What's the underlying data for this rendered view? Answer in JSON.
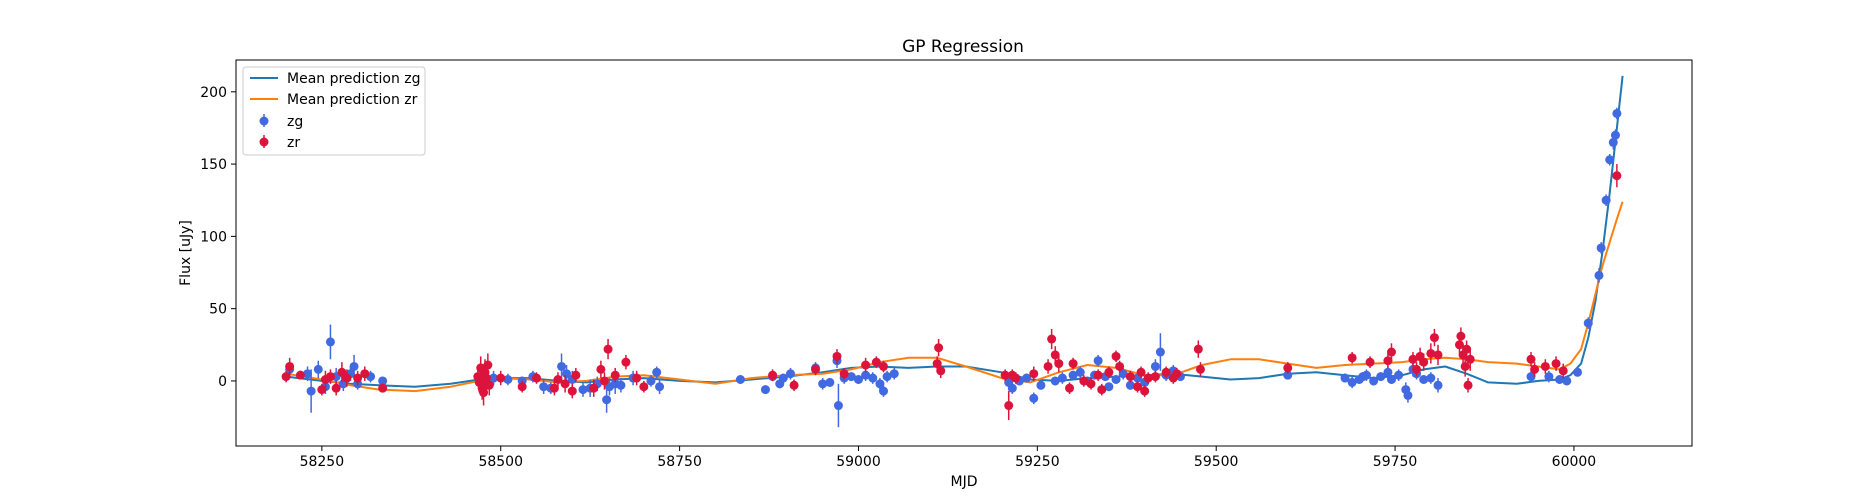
{
  "chart_data": {
    "type": "scatter",
    "title": "GP Regression",
    "xlabel": "MJD",
    "ylabel": "Flux [uJy]",
    "xlim": [
      58130,
      60165
    ],
    "ylim": [
      -45,
      222
    ],
    "xticks": [
      58250,
      58500,
      58750,
      59000,
      59250,
      59500,
      59750,
      60000
    ],
    "yticks": [
      0,
      50,
      100,
      150,
      200
    ],
    "legend_position": "top-left",
    "grid": false,
    "colors": {
      "mean_zg": "#1f77b4",
      "mean_zr": "#ff7f0e",
      "zg": "#4169e1",
      "zr": "#dc143c"
    },
    "lines": [
      {
        "name": "Mean prediction zg",
        "x": [
          58200,
          58250,
          58290,
          58330,
          58380,
          58430,
          58470,
          58500,
          58540,
          58580,
          58620,
          58660,
          58700,
          58750,
          58800,
          58850,
          58900,
          58950,
          58990,
          59030,
          59070,
          59110,
          59150,
          59200,
          59240,
          59280,
          59320,
          59360,
          59400,
          59440,
          59480,
          59520,
          59560,
          59600,
          59640,
          59680,
          59720,
          59760,
          59790,
          59820,
          59850,
          59880,
          59920,
          59950,
          59980,
          59995,
          60010,
          60020,
          60030,
          60040,
          60050,
          60060,
          60068
        ],
        "y": [
          3,
          0,
          -2,
          -3,
          -4,
          -2,
          1,
          2,
          2,
          0,
          -1,
          1,
          2,
          0,
          -1,
          1,
          3,
          6,
          9,
          10,
          9,
          10,
          10,
          6,
          1,
          0,
          2,
          3,
          4,
          5,
          3,
          1,
          2,
          5,
          6,
          4,
          2,
          4,
          8,
          10,
          5,
          -1,
          -2,
          0,
          1,
          4,
          12,
          30,
          55,
          90,
          130,
          175,
          211
        ]
      },
      {
        "name": "Mean prediction zr",
        "x": [
          58200,
          58250,
          58290,
          58330,
          58380,
          58430,
          58470,
          58500,
          58540,
          58580,
          58620,
          58660,
          58700,
          58750,
          58800,
          58850,
          58900,
          58950,
          58990,
          59030,
          59070,
          59110,
          59150,
          59200,
          59240,
          59280,
          59320,
          59360,
          59400,
          59440,
          59480,
          59520,
          59560,
          59600,
          59640,
          59680,
          59720,
          59760,
          59790,
          59820,
          59850,
          59880,
          59920,
          59950,
          59980,
          59995,
          60010,
          60020,
          60030,
          60040,
          60050,
          60060,
          60068
        ],
        "y": [
          5,
          1,
          -3,
          -6,
          -7,
          -4,
          0,
          2,
          1,
          -1,
          0,
          3,
          4,
          1,
          -2,
          2,
          4,
          5,
          8,
          13,
          16,
          16,
          10,
          2,
          -1,
          6,
          11,
          9,
          4,
          4,
          11,
          15,
          15,
          12,
          9,
          11,
          12,
          13,
          15,
          16,
          15,
          13,
          12,
          10,
          8,
          12,
          22,
          40,
          60,
          80,
          96,
          112,
          124
        ]
      }
    ],
    "series": [
      {
        "name": "zg",
        "points": [
          [
            58205,
            8,
            4
          ],
          [
            58230,
            5,
            5
          ],
          [
            58235,
            -7,
            15
          ],
          [
            58245,
            8,
            6
          ],
          [
            58255,
            -4,
            5
          ],
          [
            58262,
            27,
            12
          ],
          [
            58270,
            3,
            6
          ],
          [
            58280,
            -2,
            5
          ],
          [
            58290,
            5,
            5
          ],
          [
            58295,
            10,
            8
          ],
          [
            58300,
            -2,
            4
          ],
          [
            58318,
            3,
            4
          ],
          [
            58335,
            0,
            3
          ],
          [
            58475,
            2,
            7
          ],
          [
            58480,
            -3,
            6
          ],
          [
            58490,
            2,
            5
          ],
          [
            58510,
            1,
            4
          ],
          [
            58530,
            0,
            3
          ],
          [
            58545,
            3,
            4
          ],
          [
            58560,
            -4,
            5
          ],
          [
            58570,
            -5,
            4
          ],
          [
            58585,
            10,
            9
          ],
          [
            58592,
            5,
            6
          ],
          [
            58600,
            1,
            6
          ],
          [
            58615,
            -6,
            5
          ],
          [
            58625,
            -5,
            6
          ],
          [
            58635,
            -2,
            5
          ],
          [
            58648,
            -13,
            9
          ],
          [
            58652,
            -4,
            6
          ],
          [
            58660,
            -2,
            7
          ],
          [
            58668,
            -3,
            5
          ],
          [
            58685,
            2,
            5
          ],
          [
            58710,
            0,
            4
          ],
          [
            58718,
            6,
            4
          ],
          [
            58722,
            -4,
            5
          ],
          [
            58835,
            1,
            3
          ],
          [
            58870,
            -6,
            3
          ],
          [
            58880,
            3,
            3
          ],
          [
            58890,
            -2,
            3
          ],
          [
            58895,
            2,
            3
          ],
          [
            58905,
            5,
            4
          ],
          [
            58940,
            9,
            4
          ],
          [
            58950,
            -2,
            4
          ],
          [
            58960,
            -1,
            3
          ],
          [
            58970,
            14,
            5
          ],
          [
            58972,
            -17,
            15
          ],
          [
            58980,
            2,
            4
          ],
          [
            58990,
            3,
            3
          ],
          [
            59000,
            1,
            3
          ],
          [
            59010,
            4,
            4
          ],
          [
            59020,
            2,
            4
          ],
          [
            59030,
            -2,
            4
          ],
          [
            59035,
            -7,
            4
          ],
          [
            59040,
            3,
            4
          ],
          [
            59050,
            5,
            4
          ],
          [
            59210,
            -1,
            3
          ],
          [
            59215,
            -5,
            4
          ],
          [
            59225,
            0,
            3
          ],
          [
            59235,
            2,
            3
          ],
          [
            59245,
            -12,
            4
          ],
          [
            59255,
            -3,
            3
          ],
          [
            59275,
            0,
            3
          ],
          [
            59285,
            2,
            4
          ],
          [
            59300,
            4,
            3
          ],
          [
            59310,
            6,
            4
          ],
          [
            59320,
            0,
            3
          ],
          [
            59330,
            4,
            3
          ],
          [
            59335,
            14,
            4
          ],
          [
            59345,
            3,
            3
          ],
          [
            59350,
            -4,
            3
          ],
          [
            59360,
            1,
            3
          ],
          [
            59370,
            5,
            4
          ],
          [
            59380,
            -3,
            3
          ],
          [
            59390,
            2,
            3
          ],
          [
            59400,
            -1,
            4
          ],
          [
            59415,
            10,
            5
          ],
          [
            59422,
            20,
            13
          ],
          [
            59430,
            4,
            4
          ],
          [
            59440,
            7,
            4
          ],
          [
            59450,
            3,
            3
          ],
          [
            59600,
            4,
            3
          ],
          [
            59680,
            2,
            3
          ],
          [
            59690,
            -1,
            4
          ],
          [
            59700,
            1,
            3
          ],
          [
            59705,
            3,
            3
          ],
          [
            59710,
            4,
            4
          ],
          [
            59720,
            0,
            3
          ],
          [
            59730,
            3,
            3
          ],
          [
            59740,
            6,
            4
          ],
          [
            59745,
            1,
            3
          ],
          [
            59755,
            4,
            4
          ],
          [
            59765,
            -6,
            5
          ],
          [
            59768,
            -10,
            5
          ],
          [
            59775,
            8,
            5
          ],
          [
            59780,
            5,
            4
          ],
          [
            59790,
            1,
            3
          ],
          [
            59800,
            2,
            4
          ],
          [
            59810,
            -3,
            5
          ],
          [
            59940,
            3,
            4
          ],
          [
            59965,
            3,
            4
          ],
          [
            59980,
            1,
            3
          ],
          [
            59990,
            0,
            3
          ],
          [
            60005,
            6,
            3
          ],
          [
            60020,
            40,
            4
          ],
          [
            60035,
            73,
            5
          ],
          [
            60038,
            92,
            4
          ],
          [
            60045,
            125,
            4
          ],
          [
            60050,
            153,
            4
          ],
          [
            60055,
            165,
            5
          ],
          [
            60058,
            170,
            4
          ],
          [
            60060,
            185,
            4
          ]
        ]
      },
      {
        "name": "zr",
        "points": [
          [
            58200,
            3,
            4
          ],
          [
            58205,
            10,
            6
          ],
          [
            58220,
            4,
            3
          ],
          [
            58250,
            -6,
            4
          ],
          [
            58255,
            1,
            6
          ],
          [
            58262,
            3,
            5
          ],
          [
            58270,
            -5,
            5
          ],
          [
            58278,
            6,
            7
          ],
          [
            58285,
            2,
            6
          ],
          [
            58300,
            2,
            5
          ],
          [
            58310,
            5,
            5
          ],
          [
            58335,
            -5,
            3
          ],
          [
            58468,
            3,
            6
          ],
          [
            58470,
            -1,
            7
          ],
          [
            58472,
            9,
            8
          ],
          [
            58474,
            -5,
            8
          ],
          [
            58476,
            -8,
            9
          ],
          [
            58478,
            6,
            9
          ],
          [
            58480,
            2,
            8
          ],
          [
            58482,
            11,
            8
          ],
          [
            58484,
            -3,
            7
          ],
          [
            58500,
            2,
            5
          ],
          [
            58530,
            -4,
            4
          ],
          [
            58550,
            2,
            4
          ],
          [
            58575,
            -5,
            5
          ],
          [
            58580,
            1,
            5
          ],
          [
            58590,
            -2,
            6
          ],
          [
            58600,
            -7,
            5
          ],
          [
            58605,
            4,
            5
          ],
          [
            58630,
            -5,
            6
          ],
          [
            58640,
            8,
            6
          ],
          [
            58645,
            0,
            6
          ],
          [
            58650,
            22,
            7
          ],
          [
            58660,
            4,
            5
          ],
          [
            58675,
            13,
            5
          ],
          [
            58690,
            2,
            5
          ],
          [
            58700,
            -4,
            4
          ],
          [
            58880,
            4,
            4
          ],
          [
            58910,
            -3,
            4
          ],
          [
            58940,
            8,
            4
          ],
          [
            58970,
            17,
            5
          ],
          [
            58980,
            5,
            4
          ],
          [
            59010,
            11,
            5
          ],
          [
            59025,
            13,
            4
          ],
          [
            59035,
            10,
            4
          ],
          [
            59110,
            12,
            5
          ],
          [
            59112,
            23,
            6
          ],
          [
            59115,
            7,
            5
          ],
          [
            59205,
            4,
            4
          ],
          [
            59210,
            -17,
            10
          ],
          [
            59215,
            4,
            4
          ],
          [
            59220,
            2,
            4
          ],
          [
            59245,
            5,
            5
          ],
          [
            59265,
            10,
            5
          ],
          [
            59270,
            29,
            7
          ],
          [
            59275,
            18,
            6
          ],
          [
            59280,
            12,
            6
          ],
          [
            59295,
            -5,
            4
          ],
          [
            59300,
            12,
            4
          ],
          [
            59315,
            0,
            4
          ],
          [
            59325,
            -2,
            4
          ],
          [
            59335,
            4,
            4
          ],
          [
            59340,
            -6,
            4
          ],
          [
            59350,
            6,
            4
          ],
          [
            59360,
            17,
            4
          ],
          [
            59365,
            10,
            4
          ],
          [
            59380,
            3,
            4
          ],
          [
            59390,
            -4,
            4
          ],
          [
            59395,
            6,
            4
          ],
          [
            59400,
            -7,
            4
          ],
          [
            59405,
            2,
            4
          ],
          [
            59415,
            3,
            4
          ],
          [
            59430,
            6,
            4
          ],
          [
            59440,
            2,
            4
          ],
          [
            59445,
            5,
            4
          ],
          [
            59475,
            22,
            6
          ],
          [
            59478,
            8,
            5
          ],
          [
            59600,
            9,
            4
          ],
          [
            59690,
            16,
            4
          ],
          [
            59715,
            13,
            4
          ],
          [
            59740,
            14,
            5
          ],
          [
            59745,
            20,
            6
          ],
          [
            59775,
            15,
            5
          ],
          [
            59780,
            8,
            5
          ],
          [
            59785,
            17,
            6
          ],
          [
            59790,
            13,
            6
          ],
          [
            59800,
            19,
            7
          ],
          [
            59805,
            30,
            6
          ],
          [
            59810,
            18,
            7
          ],
          [
            59840,
            25,
            6
          ],
          [
            59842,
            31,
            6
          ],
          [
            59845,
            18,
            7
          ],
          [
            59848,
            10,
            7
          ],
          [
            59850,
            22,
            6
          ],
          [
            59852,
            -3,
            5
          ],
          [
            59855,
            15,
            8
          ],
          [
            59940,
            15,
            5
          ],
          [
            59945,
            8,
            5
          ],
          [
            59960,
            10,
            5
          ],
          [
            59975,
            12,
            5
          ],
          [
            59985,
            7,
            5
          ],
          [
            60060,
            142,
            8
          ]
        ]
      }
    ]
  }
}
